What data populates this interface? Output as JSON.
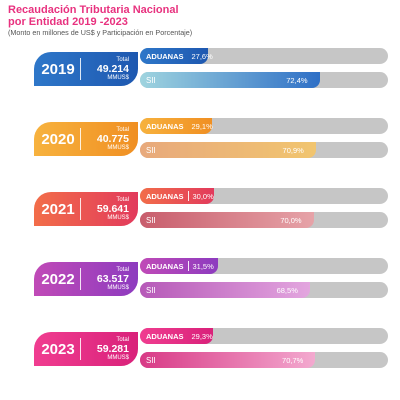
{
  "title_line1": "Recaudación Tributaria Nacional",
  "title_line2": "por Entidad 2019 -2023",
  "subtitle": "(Monto en millones de US$ y Participación en Porcentaje)",
  "total_label": "Total",
  "unit_label": "MMUS$",
  "chart_data": {
    "type": "bar",
    "categories": [
      "2019",
      "2020",
      "2021",
      "2022",
      "2023"
    ],
    "series": [
      {
        "name": "ADUANAS",
        "values": [
          27.6,
          29.1,
          30.0,
          31.5,
          29.3
        ],
        "labels": [
          "27,6%",
          "29,1%",
          "30,0%",
          "31,5%",
          "29,3%"
        ]
      },
      {
        "name": "SII",
        "values": [
          72.4,
          70.9,
          70.0,
          68.5,
          70.7
        ],
        "labels": [
          "72,4%",
          "70,9%",
          "70,0%",
          "68,5%",
          "70,7%"
        ]
      }
    ],
    "totals": [
      "49.214",
      "40.775",
      "59.641",
      "63.517",
      "59.281"
    ],
    "xlim": [
      0,
      100
    ],
    "colors": {
      "2019": [
        "#2e77c9",
        "#1e58b0"
      ],
      "2020": [
        "#f7b23e",
        "#f08f22"
      ],
      "2021": [
        "#f26d49",
        "#e23a5c"
      ],
      "2022": [
        "#c04ab7",
        "#8d3bbf"
      ],
      "2023": [
        "#f03d90",
        "#d9217a"
      ]
    },
    "sii_colors": {
      "2019": [
        "#9fd4df",
        "#2e6fc6"
      ],
      "2020": [
        "#e8a97c",
        "#f1c56f"
      ],
      "2021": [
        "#c85d6c",
        "#e6a3a8"
      ],
      "2022": [
        "#b659b8",
        "#e3a6df"
      ],
      "2023": [
        "#d83a86",
        "#f3a9cf"
      ]
    }
  }
}
